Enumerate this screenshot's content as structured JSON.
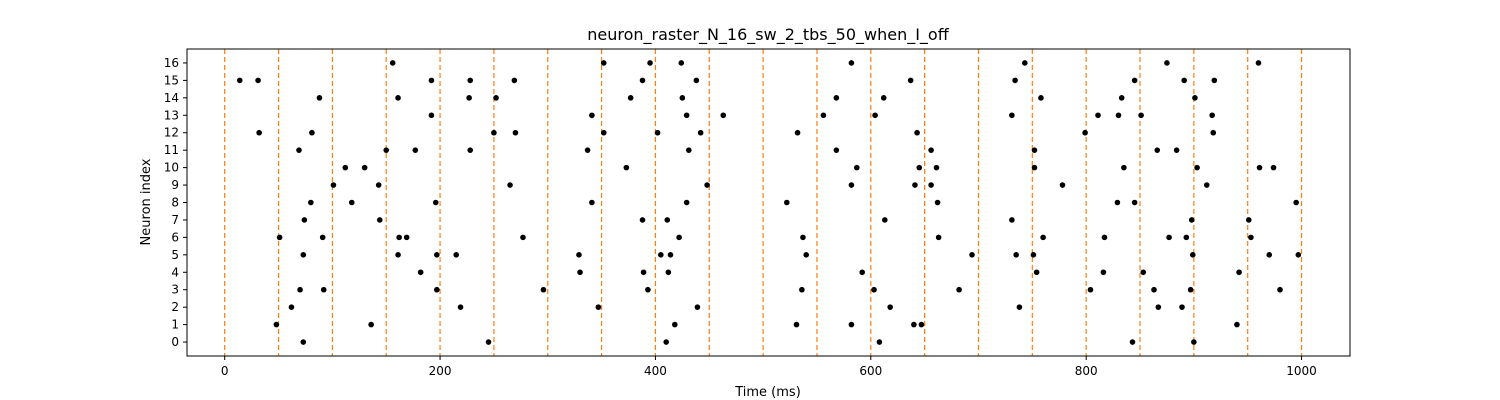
{
  "chart_data": {
    "type": "scatter",
    "title": "neuron_raster_N_16_sw_2_tbs_50_when_I_off",
    "xlabel": "Time (ms)",
    "ylabel": "Neuron index",
    "xlim": [
      -35,
      1045
    ],
    "ylim": [
      -0.8,
      16.8
    ],
    "xticks": [
      0,
      200,
      400,
      600,
      800,
      1000
    ],
    "yticks": [
      0,
      1,
      2,
      3,
      4,
      5,
      6,
      7,
      8,
      9,
      10,
      11,
      12,
      13,
      14,
      15,
      16
    ],
    "grid": false,
    "marker_color": "#000000",
    "vline_color": "#ff7f0e",
    "vlines": [
      0,
      50,
      100,
      150,
      200,
      250,
      300,
      350,
      400,
      450,
      500,
      550,
      600,
      650,
      700,
      750,
      800,
      850,
      900,
      950,
      1000
    ],
    "series": [
      {
        "neuron": 0,
        "times": [
          73,
          245,
          410,
          608,
          843,
          900
        ]
      },
      {
        "neuron": 1,
        "times": [
          48,
          136,
          418,
          531,
          582,
          640,
          647,
          940
        ]
      },
      {
        "neuron": 2,
        "times": [
          62,
          219,
          347,
          439,
          618,
          738,
          867,
          889
        ]
      },
      {
        "neuron": 3,
        "times": [
          70,
          92,
          197,
          296,
          393,
          536,
          603,
          682,
          804,
          863,
          897,
          980
        ]
      },
      {
        "neuron": 4,
        "times": [
          182,
          330,
          389,
          412,
          592,
          754,
          816,
          853,
          942
        ]
      },
      {
        "neuron": 5,
        "times": [
          73,
          161,
          197,
          215,
          329,
          405,
          414,
          540,
          694,
          735,
          751,
          899,
          970,
          997
        ]
      },
      {
        "neuron": 6,
        "times": [
          51,
          91,
          162,
          169,
          277,
          422,
          537,
          663,
          760,
          817,
          877,
          893,
          953
        ]
      },
      {
        "neuron": 7,
        "times": [
          74,
          144,
          388,
          411,
          613,
          731,
          898,
          951
        ]
      },
      {
        "neuron": 8,
        "times": [
          80,
          118,
          196,
          341,
          429,
          522,
          662,
          829,
          845,
          995
        ]
      },
      {
        "neuron": 9,
        "times": [
          101,
          143,
          265,
          448,
          582,
          641,
          656,
          778,
          912
        ]
      },
      {
        "neuron": 10,
        "times": [
          112,
          130,
          373,
          587,
          645,
          661,
          752,
          835,
          903,
          961,
          974
        ]
      },
      {
        "neuron": 11,
        "times": [
          69,
          150,
          177,
          228,
          337,
          431,
          568,
          656,
          752,
          866,
          884
        ]
      },
      {
        "neuron": 12,
        "times": [
          32,
          81,
          250,
          270,
          352,
          402,
          442,
          532,
          643,
          799,
          918
        ]
      },
      {
        "neuron": 13,
        "times": [
          192,
          341,
          429,
          463,
          556,
          604,
          731,
          811,
          830,
          851,
          917
        ]
      },
      {
        "neuron": 14,
        "times": [
          88,
          161,
          227,
          252,
          377,
          425,
          568,
          612,
          758,
          833,
          901
        ]
      },
      {
        "neuron": 15,
        "times": [
          14,
          31,
          192,
          228,
          269,
          388,
          438,
          637,
          734,
          845,
          891,
          919
        ]
      },
      {
        "neuron": 16,
        "times": [
          156,
          352,
          395,
          424,
          582,
          743,
          875,
          960
        ]
      }
    ]
  }
}
